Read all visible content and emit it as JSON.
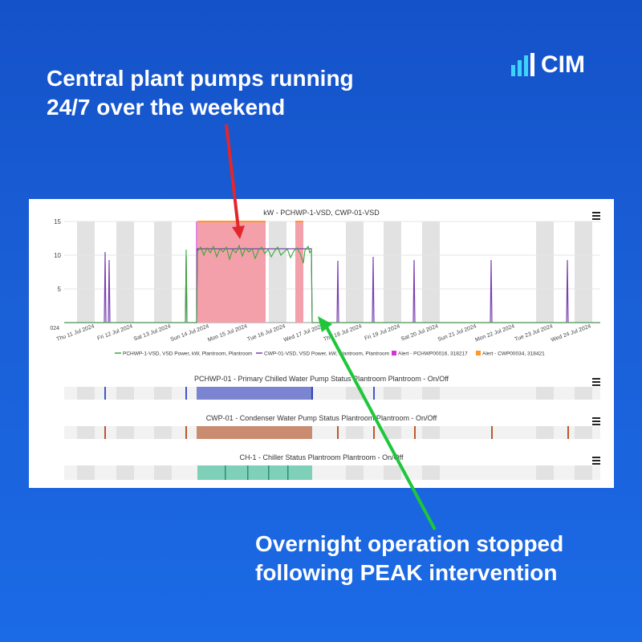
{
  "headline_top": [
    "Central plant pumps running",
    "24/7 over the weekend"
  ],
  "headline_bottom": [
    "Overnight operation stopped",
    "following PEAK intervention"
  ],
  "logo": {
    "text": "CIM",
    "icon": "bar-chart-icon"
  },
  "colors": {
    "background": "#1a5fd6",
    "red_arrow": "#e3262b",
    "green_arrow": "#1fc63a",
    "pchwp_line": "#3aa83a",
    "cwp_line": "#7a3fb0",
    "alert_pchwp": "#d633d6",
    "alert_cwp": "#ff9922",
    "alert_band": "#f4a0aa",
    "status_blue": "#7a84d0",
    "status_brown": "#c98c70",
    "status_teal": "#7ed0b9"
  },
  "kw_chart": {
    "title": "kW - PCHWP-1-VSD, CWP-01-VSD",
    "menu_icon": "hamburger-menu-icon",
    "y_ticks": [
      "15",
      "10",
      "5",
      "024"
    ],
    "x_ticks": [
      "Thu 11 Jul 2024",
      "Fri 12 Jul 2024",
      "Sat 13 Jul 2024",
      "Sun 14 Jul 2024",
      "Mon 15 Jul 2024",
      "Tue 16 Jul 2024",
      "Wed 17 Jul 2024",
      "Thu 18 Jul 2024",
      "Fri 19 Jul 2024",
      "Sat 20 Jul 2024",
      "Sun 21 Jul 2024",
      "Mon 22 Jul 2024",
      "Tue 23 Jul 2024",
      "Wed 24 Jul 2024"
    ],
    "legend": [
      "PCHWP-1-VSD, VSD Power, kW, Plantroom, Plantroom",
      "CWP-01-VSD, VSD Power, kW, Plantroom, Plantroom",
      "Alert - PCHWP00016, 318217",
      "Alert - CWP00034, 318421"
    ]
  },
  "chart_data": {
    "type": "line",
    "title": "kW - PCHWP-1-VSD, CWP-01-VSD",
    "x_range": [
      "2024-07-11",
      "2024-07-24"
    ],
    "ylim": [
      0,
      15
    ],
    "grid": true,
    "legend_position": "bottom",
    "series": [
      {
        "name": "PCHWP-1-VSD, VSD Power, kW, Plantroom, Plantroom",
        "spikes": [
          {
            "x": "2024-07-12 06:00",
            "y": 10.5
          },
          {
            "x": "2024-07-12 12:00",
            "y": 9.5
          },
          {
            "x": "2024-07-14 06:00",
            "y": 11
          }
        ],
        "sustained": {
          "start": "2024-07-14 10:00",
          "end": "2024-07-17 18:00",
          "level": 10.5
        }
      },
      {
        "name": "CWP-01-VSD, VSD Power, kW, Plantroom, Plantroom",
        "spikes": [
          {
            "x": "2024-07-18 12:00",
            "y": 9.3
          },
          {
            "x": "2024-07-19 12:00",
            "y": 9.8
          },
          {
            "x": "2024-07-20 12:00",
            "y": 9.3
          },
          {
            "x": "2024-07-22 12:00",
            "y": 9.3
          },
          {
            "x": "2024-07-24 12:00",
            "y": 9.3
          }
        ],
        "sustained": {
          "start": "2024-07-14 10:00",
          "end": "2024-07-17 18:00",
          "level": 10.5
        }
      }
    ],
    "alert_bands": [
      {
        "name": "Alert - PCHWP00016, 318217",
        "start": "2024-07-14 10:00",
        "end": "2024-07-16 12:00"
      },
      {
        "name": "Alert - CWP00034, 318421",
        "start": "2024-07-17 00:00",
        "end": "2024-07-17 06:00"
      }
    ]
  },
  "status_charts": [
    {
      "title": "PCHWP-01 - Primary Chilled Water Pump Status Plantroom Plantroom - On/Off",
      "menu_icon": "hamburger-menu-icon"
    },
    {
      "title": "CWP-01 - Condenser Water Pump Status Plantroom Plantroom - On/Off",
      "menu_icon": "hamburger-menu-icon"
    },
    {
      "title": "CH-1 - Chiller Status Plantroom Plantroom - On/Off",
      "menu_icon": "hamburger-menu-icon"
    }
  ]
}
